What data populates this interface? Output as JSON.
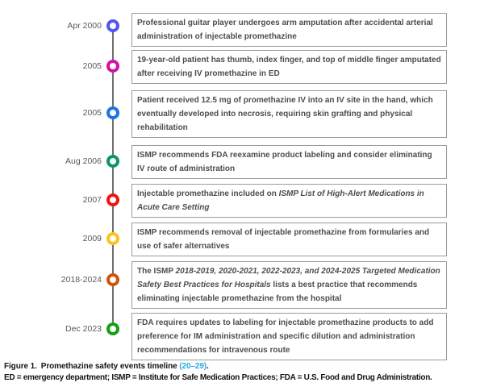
{
  "timeline": {
    "line_color": "#6f6f6f",
    "box_border_color": "#9b9b9b",
    "text_color": "#4d4d4d",
    "events": [
      {
        "date": "Apr 2000",
        "color": "#5455ee",
        "segments": [
          {
            "text": "Professional guitar player undergoes arm amputation after accidental arterial administration of injectable promethazine",
            "italic": false
          }
        ]
      },
      {
        "date": "2005",
        "color": "#d811a5",
        "segments": [
          {
            "text": "19-year-old patient has thumb, index finger, and top of middle finger amputated after receiving IV promethazine in ED",
            "italic": false
          }
        ]
      },
      {
        "date": "2005",
        "color": "#1b74e8",
        "segments": [
          {
            "text": "Patient received 12.5 mg of promethazine IV into an IV site in the hand, which eventually developed into necrosis, requiring skin grafting and physical rehabilitation",
            "italic": false
          }
        ]
      },
      {
        "date": "Aug 2006",
        "color": "#0d9466",
        "segments": [
          {
            "text": "ISMP recommends FDA reexamine product labeling and consider eliminating IV route of administration",
            "italic": false
          }
        ]
      },
      {
        "date": "2007",
        "color": "#f01414",
        "segments": [
          {
            "text": "Injectable promethazine included on ",
            "italic": false
          },
          {
            "text": "ISMP List of High-Alert Medications in Acute Care Setting",
            "italic": true
          }
        ]
      },
      {
        "date": "2009",
        "color": "#fcc31c",
        "segments": [
          {
            "text": "ISMP recommends removal of injectable promethazine from formularies and use of safer alternatives",
            "italic": false
          }
        ]
      },
      {
        "date": "2018-2024",
        "color": "#cf5409",
        "segments": [
          {
            "text": "The ISMP ",
            "italic": false
          },
          {
            "text": "2018-2019, 2020-2021, 2022-2023, and 2024-2025 Targeted Medication Safety Best Practices for Hospitals",
            "italic": true
          },
          {
            "text": " lists a best practice that recommends eliminating injectable promethazine from the hospital",
            "italic": false
          }
        ]
      },
      {
        "date": "Dec 2023",
        "color": "#12a112",
        "segments": [
          {
            "text": "FDA requires updates to labeling for injectable promethazine products to add preference for IM administration and specific dilution and administration recommendations for intravenous route",
            "italic": false
          }
        ]
      }
    ]
  },
  "caption": {
    "label": "Figure 1.",
    "title": "Promethazine safety events timeline ",
    "citation": "(20–29)",
    "period": ".",
    "link_color": "#2aa9e0",
    "abbreviations": "ED = emergency department; ISMP = Institute for Safe Medication Practices; FDA = U.S. Food and Drug Administration."
  }
}
